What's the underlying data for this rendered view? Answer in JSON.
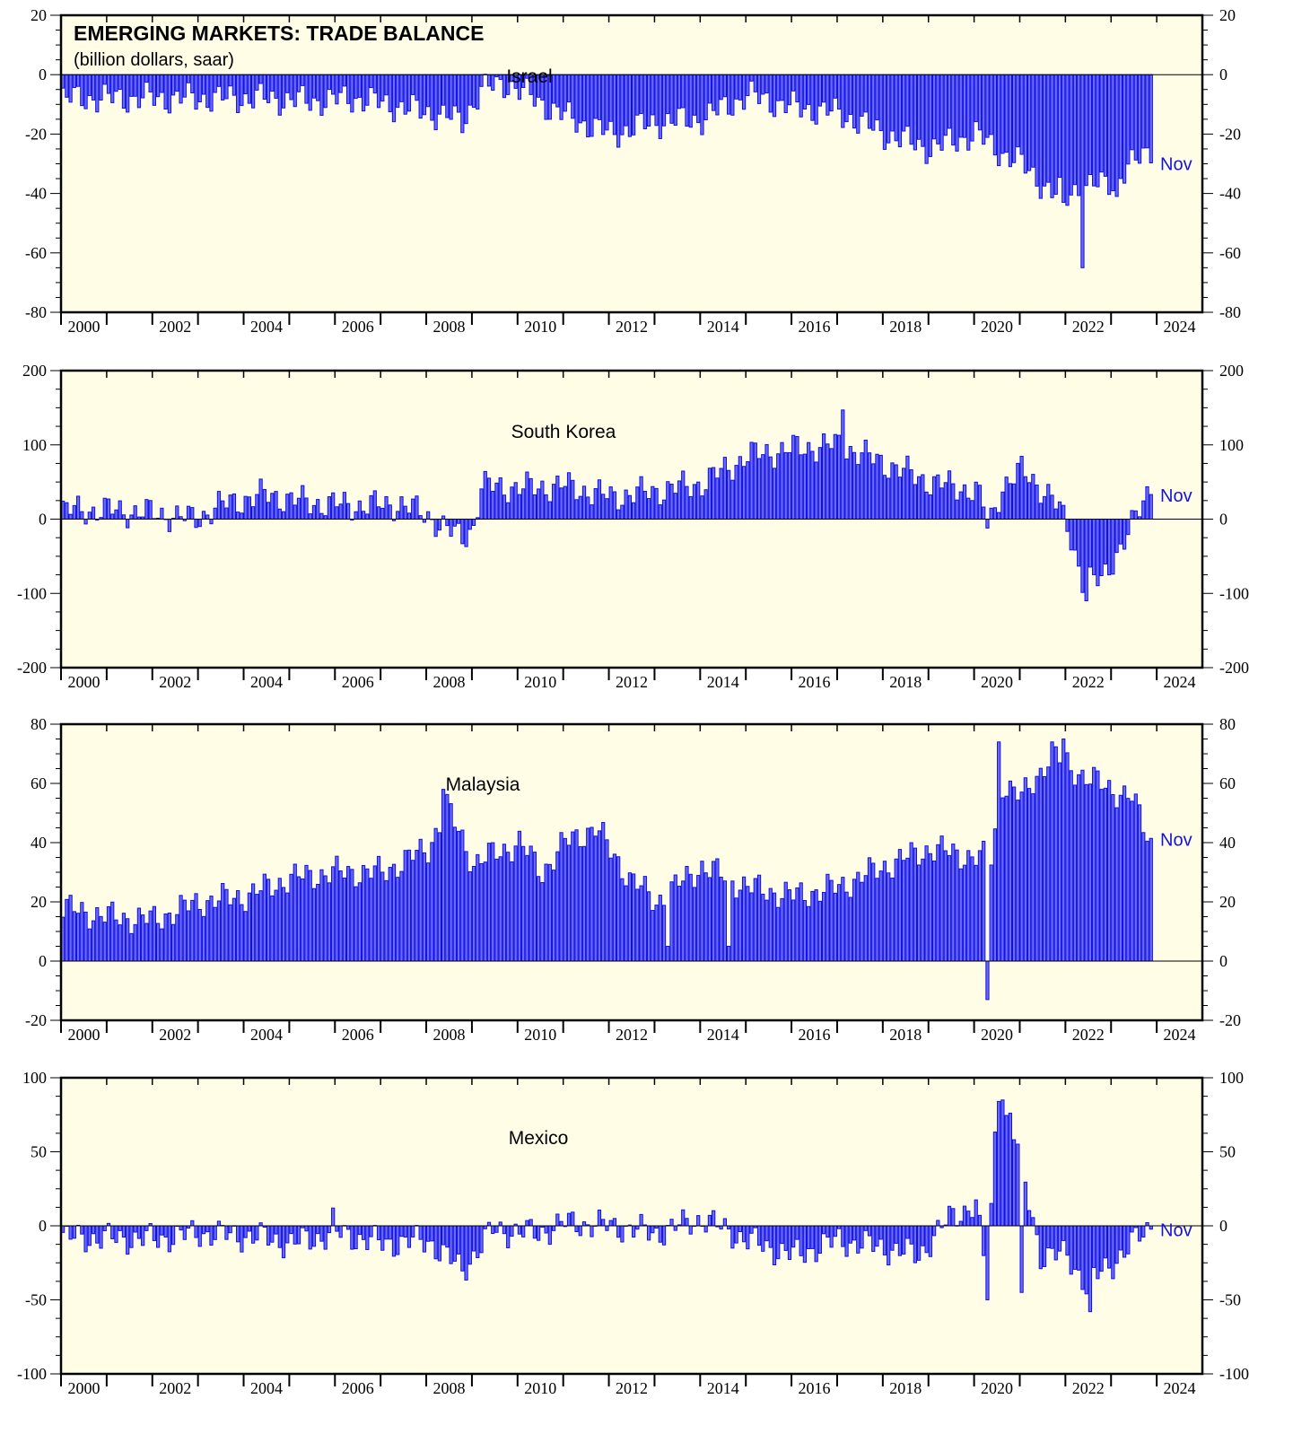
{
  "figure": {
    "title": "EMERGING MARKETS: TRADE BALANCE",
    "subtitle": "(billion dollars, saar)"
  },
  "colors": {
    "background": "#fffde6",
    "bar_fill": "#6b6bff",
    "bar_stroke": "#1010e0",
    "annotation": "#1414d6",
    "axis": "#000000"
  },
  "x_axis": {
    "range": [
      "2000-01",
      "2024-12"
    ],
    "tick_labels": [
      "2000",
      "2002",
      "2004",
      "2006",
      "2008",
      "2010",
      "2012",
      "2014",
      "2016",
      "2018",
      "2020",
      "2022",
      "2024"
    ]
  },
  "chart_data": [
    {
      "type": "bar",
      "country": "Israel",
      "label": "Israel",
      "ylim": [
        -80,
        20
      ],
      "yticks": [
        20,
        0,
        -20,
        -40,
        -60,
        -80
      ],
      "annotation": "Nov",
      "start": "2000-01",
      "end": "2023-11",
      "frequency": "monthly",
      "anchors": [
        [
          "2000-01",
          -8
        ],
        [
          "2001-06",
          -8
        ],
        [
          "2003-01",
          -8
        ],
        [
          "2004-06",
          -8
        ],
        [
          "2005-06",
          -9
        ],
        [
          "2006-06",
          -8
        ],
        [
          "2007-06",
          -11
        ],
        [
          "2008-06",
          -14
        ],
        [
          "2008-10",
          -16
        ],
        [
          "2009-03",
          -5
        ],
        [
          "2009-10",
          -3
        ],
        [
          "2010-06",
          -9
        ],
        [
          "2011-01",
          -14
        ],
        [
          "2012-01",
          -20
        ],
        [
          "2013-01",
          -16
        ],
        [
          "2014-01",
          -15
        ],
        [
          "2015-01",
          -7
        ],
        [
          "2016-01",
          -11
        ],
        [
          "2017-01",
          -13
        ],
        [
          "2018-01",
          -20
        ],
        [
          "2019-01",
          -25
        ],
        [
          "2020-01",
          -20
        ],
        [
          "2020-06",
          -25
        ],
        [
          "2021-01",
          -30
        ],
        [
          "2021-09",
          -40
        ],
        [
          "2022-06",
          -38
        ],
        [
          "2023-01",
          -36
        ],
        [
          "2023-11",
          -25
        ]
      ],
      "spikes": [
        [
          "2021-12",
          -43
        ],
        [
          "2022-01",
          -44
        ],
        [
          "2022-05",
          -65
        ],
        [
          "2023-02",
          -41
        ]
      ]
    },
    {
      "type": "bar",
      "country": "South Korea",
      "label": "South Korea",
      "ylim": [
        -200,
        200
      ],
      "yticks": [
        200,
        100,
        0,
        -100,
        -200
      ],
      "annotation": "Nov",
      "start": "2000-01",
      "end": "2023-11",
      "frequency": "monthly",
      "anchors": [
        [
          "2000-01",
          12
        ],
        [
          "2001-01",
          12
        ],
        [
          "2002-01",
          8
        ],
        [
          "2002-12",
          0
        ],
        [
          "2003-06",
          18
        ],
        [
          "2004-06",
          33
        ],
        [
          "2005-06",
          22
        ],
        [
          "2006-06",
          18
        ],
        [
          "2007-06",
          20
        ],
        [
          "2008-01",
          5
        ],
        [
          "2008-06",
          -15
        ],
        [
          "2008-10",
          -25
        ],
        [
          "2009-01",
          -10
        ],
        [
          "2009-03",
          45
        ],
        [
          "2010-01",
          42
        ],
        [
          "2011-01",
          45
        ],
        [
          "2012-01",
          30
        ],
        [
          "2013-01",
          38
        ],
        [
          "2014-01",
          48
        ],
        [
          "2015-01",
          85
        ],
        [
          "2016-01",
          95
        ],
        [
          "2017-01",
          100
        ],
        [
          "2018-01",
          75
        ],
        [
          "2019-01",
          50
        ],
        [
          "2020-01",
          38
        ],
        [
          "2020-05",
          0
        ],
        [
          "2020-08",
          45
        ],
        [
          "2021-01",
          65
        ],
        [
          "2021-09",
          30
        ],
        [
          "2022-01",
          -10
        ],
        [
          "2022-05",
          -80
        ],
        [
          "2022-10",
          -85
        ],
        [
          "2023-01",
          -55
        ],
        [
          "2023-07",
          0
        ],
        [
          "2023-11",
          45
        ]
      ],
      "spikes": [
        [
          "2017-02",
          147
        ],
        [
          "2022-06",
          -110
        ],
        [
          "2020-04",
          -12
        ],
        [
          "2008-11",
          -37
        ]
      ]
    },
    {
      "type": "bar",
      "country": "Malaysia",
      "label": "Malaysia",
      "ylim": [
        -20,
        80
      ],
      "yticks": [
        80,
        60,
        40,
        20,
        0,
        -20
      ],
      "annotation": "Nov",
      "start": "2000-01",
      "end": "2023-11",
      "frequency": "monthly",
      "anchors": [
        [
          "2000-01",
          18
        ],
        [
          "2001-01",
          15
        ],
        [
          "2002-01",
          14
        ],
        [
          "2003-01",
          20
        ],
        [
          "2004-01",
          22
        ],
        [
          "2005-01",
          28
        ],
        [
          "2006-01",
          30
        ],
        [
          "2007-01",
          30
        ],
        [
          "2008-01",
          38
        ],
        [
          "2008-06",
          52
        ],
        [
          "2009-01",
          33
        ],
        [
          "2010-01",
          40
        ],
        [
          "2010-07",
          30
        ],
        [
          "2011-01",
          40
        ],
        [
          "2011-09",
          45
        ],
        [
          "2012-06",
          28
        ],
        [
          "2013-01",
          20
        ],
        [
          "2013-06",
          25
        ],
        [
          "2014-01",
          32
        ],
        [
          "2015-01",
          25
        ],
        [
          "2016-01",
          22
        ],
        [
          "2017-01",
          25
        ],
        [
          "2018-01",
          32
        ],
        [
          "2019-01",
          38
        ],
        [
          "2020-01",
          35
        ],
        [
          "2020-05",
          35
        ],
        [
          "2020-08",
          60
        ],
        [
          "2021-01",
          55
        ],
        [
          "2021-09",
          70
        ],
        [
          "2022-06",
          62
        ],
        [
          "2023-06",
          55
        ],
        [
          "2023-11",
          40
        ]
      ],
      "spikes": [
        [
          "2020-04",
          -13
        ],
        [
          "2020-07",
          74
        ],
        [
          "2021-09",
          74
        ],
        [
          "2021-12",
          75
        ],
        [
          "2008-05",
          58
        ],
        [
          "2013-04",
          5
        ],
        [
          "2014-08",
          5
        ]
      ]
    },
    {
      "type": "bar",
      "country": "Mexico",
      "label": "Mexico",
      "ylim": [
        -100,
        100
      ],
      "yticks": [
        100,
        50,
        0,
        -50,
        -100
      ],
      "annotation": "Nov",
      "start": "2000-01",
      "end": "2023-11",
      "frequency": "monthly",
      "anchors": [
        [
          "2000-01",
          -8
        ],
        [
          "2002-01",
          -9
        ],
        [
          "2003-01",
          -5
        ],
        [
          "2004-06",
          -8
        ],
        [
          "2005-01",
          -12
        ],
        [
          "2006-01",
          -5
        ],
        [
          "2007-01",
          -12
        ],
        [
          "2008-01",
          -10
        ],
        [
          "2008-10",
          -30
        ],
        [
          "2009-06",
          -3
        ],
        [
          "2010-06",
          -5
        ],
        [
          "2011-01",
          2
        ],
        [
          "2012-01",
          0
        ],
        [
          "2013-01",
          -5
        ],
        [
          "2014-01",
          5
        ],
        [
          "2015-01",
          -10
        ],
        [
          "2016-01",
          -20
        ],
        [
          "2017-01",
          -10
        ],
        [
          "2018-01",
          -15
        ],
        [
          "2018-10",
          -20
        ],
        [
          "2019-06",
          5
        ],
        [
          "2020-01",
          15
        ],
        [
          "2020-04",
          -40
        ],
        [
          "2020-06",
          60
        ],
        [
          "2020-10",
          75
        ],
        [
          "2021-01",
          40
        ],
        [
          "2021-06",
          -20
        ],
        [
          "2022-01",
          -20
        ],
        [
          "2022-06",
          -40
        ],
        [
          "2023-01",
          -25
        ],
        [
          "2023-11",
          0
        ]
      ],
      "spikes": [
        [
          "2020-07",
          84
        ],
        [
          "2020-08",
          85
        ],
        [
          "2021-01",
          -45
        ],
        [
          "2022-07",
          -58
        ],
        [
          "2020-04",
          -50
        ],
        [
          "2005-12",
          12
        ]
      ]
    }
  ]
}
